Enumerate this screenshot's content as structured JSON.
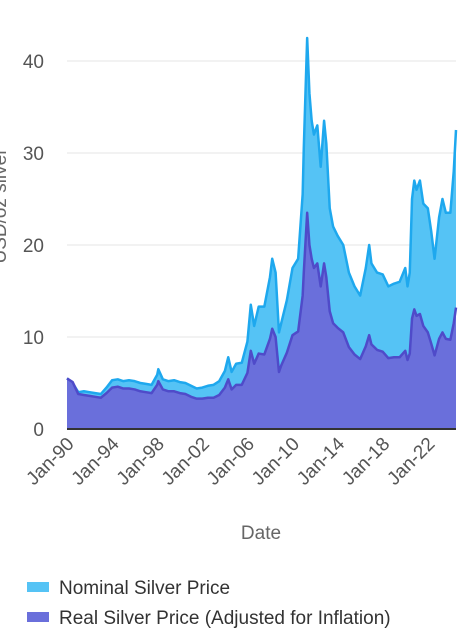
{
  "colors": {
    "nominal_fill": "#55C3F5",
    "nominal_line": "#1EA8EE",
    "real_fill": "#6A6FDB",
    "real_line": "#4F4BC9",
    "grid": "#E6E6E6",
    "axis": "#333333"
  },
  "chart_data": {
    "type": "area",
    "xlabel": "Date",
    "ylabel": "USD/oz silver",
    "ylim": [
      0,
      45
    ],
    "xlim": [
      1990.0,
      2024.5
    ],
    "y_ticks": [
      0,
      10,
      20,
      30,
      40
    ],
    "x_tick_labels": [
      "Jan-90",
      "Jan-94",
      "Jan-98",
      "Jan-02",
      "Jan-06",
      "Jan-10",
      "Jan-14",
      "Jan-18",
      "Jan-22"
    ],
    "x_tick_years": [
      1990,
      1994,
      1998,
      2002,
      2006,
      2010,
      2014,
      2018,
      2022
    ],
    "grid": true,
    "legend_position": "bottom",
    "series": [
      {
        "name": "Nominal Silver Price",
        "x": [
          1990.0,
          1990.5,
          1991.0,
          1991.5,
          1992.0,
          1992.5,
          1993.0,
          1993.5,
          1994.0,
          1994.5,
          1995.0,
          1995.5,
          1996.0,
          1996.5,
          1997.0,
          1997.5,
          1998.0,
          1998.1,
          1998.5,
          1999.0,
          1999.5,
          2000.0,
          2000.5,
          2001.0,
          2001.5,
          2002.0,
          2002.5,
          2003.0,
          2003.5,
          2004.0,
          2004.3,
          2004.6,
          2005.0,
          2005.5,
          2006.0,
          2006.3,
          2006.6,
          2007.0,
          2007.5,
          2008.0,
          2008.2,
          2008.5,
          2008.8,
          2009.0,
          2009.5,
          2010.0,
          2010.5,
          2010.9,
          2011.0,
          2011.3,
          2011.5,
          2011.7,
          2011.9,
          2012.2,
          2012.5,
          2012.8,
          2013.0,
          2013.3,
          2013.6,
          2014.0,
          2014.5,
          2015.0,
          2015.5,
          2016.0,
          2016.5,
          2016.8,
          2017.0,
          2017.5,
          2018.0,
          2018.5,
          2019.0,
          2019.5,
          2020.0,
          2020.2,
          2020.4,
          2020.6,
          2020.8,
          2021.0,
          2021.3,
          2021.6,
          2022.0,
          2022.3,
          2022.6,
          2023.0,
          2023.3,
          2023.6,
          2024.0,
          2024.3,
          2024.5
        ],
        "values": [
          5.5,
          5.0,
          4.0,
          4.1,
          4.0,
          3.9,
          3.8,
          4.5,
          5.3,
          5.4,
          5.2,
          5.3,
          5.2,
          5.0,
          4.9,
          4.8,
          5.9,
          6.5,
          5.4,
          5.2,
          5.3,
          5.1,
          5.0,
          4.7,
          4.4,
          4.5,
          4.7,
          4.8,
          5.2,
          6.3,
          7.8,
          6.2,
          7.1,
          7.2,
          9.5,
          13.5,
          11.2,
          13.3,
          13.3,
          16.5,
          18.5,
          17.0,
          10.5,
          11.5,
          14.0,
          17.5,
          18.5,
          25.5,
          30.5,
          42.5,
          36.5,
          33.5,
          32.0,
          33.0,
          28.5,
          33.5,
          31.0,
          24.0,
          22.0,
          21.0,
          20.0,
          17.0,
          15.5,
          14.5,
          17.5,
          20.0,
          18.0,
          17.0,
          16.8,
          15.5,
          15.8,
          16.0,
          17.5,
          15.5,
          17.0,
          25.0,
          27.0,
          26.0,
          27.0,
          24.5,
          24.0,
          21.5,
          18.5,
          23.0,
          25.0,
          23.5,
          23.5,
          28.0,
          32.5
        ]
      },
      {
        "name": "Real Silver Price (Adjusted for Inflation)",
        "x": [
          1990.0,
          1990.5,
          1991.0,
          1991.5,
          1992.0,
          1992.5,
          1993.0,
          1993.5,
          1994.0,
          1994.5,
          1995.0,
          1995.5,
          1996.0,
          1996.5,
          1997.0,
          1997.5,
          1998.0,
          1998.1,
          1998.5,
          1999.0,
          1999.5,
          2000.0,
          2000.5,
          2001.0,
          2001.5,
          2002.0,
          2002.5,
          2003.0,
          2003.5,
          2004.0,
          2004.3,
          2004.6,
          2005.0,
          2005.5,
          2006.0,
          2006.3,
          2006.6,
          2007.0,
          2007.5,
          2008.0,
          2008.2,
          2008.5,
          2008.8,
          2009.0,
          2009.5,
          2010.0,
          2010.5,
          2010.9,
          2011.0,
          2011.3,
          2011.5,
          2011.7,
          2011.9,
          2012.2,
          2012.5,
          2012.8,
          2013.0,
          2013.3,
          2013.6,
          2014.0,
          2014.5,
          2015.0,
          2015.5,
          2016.0,
          2016.5,
          2016.8,
          2017.0,
          2017.5,
          2018.0,
          2018.5,
          2019.0,
          2019.5,
          2020.0,
          2020.2,
          2020.4,
          2020.6,
          2020.8,
          2021.0,
          2021.3,
          2021.6,
          2022.0,
          2022.3,
          2022.6,
          2023.0,
          2023.3,
          2023.6,
          2024.0,
          2024.3,
          2024.5
        ],
        "values": [
          5.5,
          5.1,
          3.8,
          3.7,
          3.6,
          3.5,
          3.4,
          3.9,
          4.5,
          4.6,
          4.4,
          4.4,
          4.3,
          4.1,
          4.0,
          3.9,
          4.8,
          5.2,
          4.3,
          4.1,
          4.1,
          3.9,
          3.8,
          3.5,
          3.3,
          3.3,
          3.4,
          3.4,
          3.7,
          4.5,
          5.4,
          4.3,
          4.8,
          4.8,
          6.1,
          8.5,
          7.1,
          8.2,
          8.1,
          9.8,
          10.9,
          10.0,
          6.2,
          6.9,
          8.3,
          10.2,
          10.6,
          14.5,
          17.0,
          23.5,
          20.0,
          18.5,
          17.5,
          18.0,
          15.5,
          18.0,
          16.5,
          12.8,
          11.5,
          11.0,
          10.5,
          8.9,
          8.1,
          7.6,
          9.0,
          10.2,
          9.2,
          8.6,
          8.4,
          7.7,
          7.8,
          7.8,
          8.5,
          7.5,
          8.2,
          12.0,
          13.0,
          12.3,
          12.5,
          11.2,
          10.5,
          9.3,
          8.0,
          9.8,
          10.5,
          9.8,
          9.7,
          11.5,
          13.2
        ]
      }
    ]
  }
}
